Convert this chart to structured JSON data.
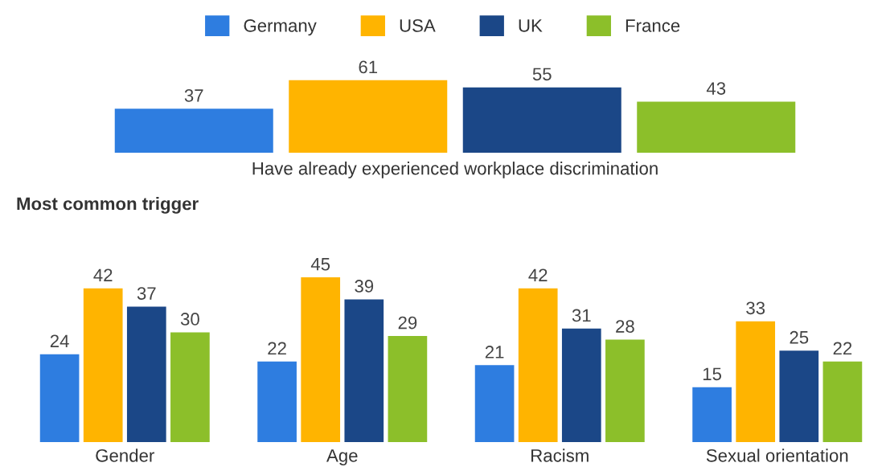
{
  "chart_data": [
    {
      "type": "bar",
      "categories": [
        null,
        null,
        null,
        null
      ],
      "xlabel": "Have already experienced workplace discrimination",
      "data_labels": true,
      "tick_labels": "x",
      "grid": false,
      "values": [
        37,
        61,
        55,
        43
      ],
      "colors": [
        "#2e7de0",
        "#ffb400",
        "#1b4787",
        "#8cbf2a"
      ]
    },
    {
      "type": "bar",
      "title": "Most common trigger",
      "categories": [
        "Gender",
        "Age",
        "Racism",
        "Sexual orientation"
      ],
      "data_labels": true,
      "tick_labels": "x",
      "grid": false,
      "legend": "top",
      "series": [
        {
          "name": "Germany",
          "color": "#2e7de0",
          "values": [
            24,
            22,
            21,
            15
          ]
        },
        {
          "name": "USA",
          "color": "#ffb400",
          "values": [
            42,
            45,
            42,
            33
          ]
        },
        {
          "name": "UK",
          "color": "#1b4787",
          "values": [
            37,
            39,
            31,
            25
          ]
        },
        {
          "name": "France",
          "color": "#8cbf2a",
          "values": [
            30,
            29,
            28,
            22
          ]
        }
      ]
    }
  ]
}
